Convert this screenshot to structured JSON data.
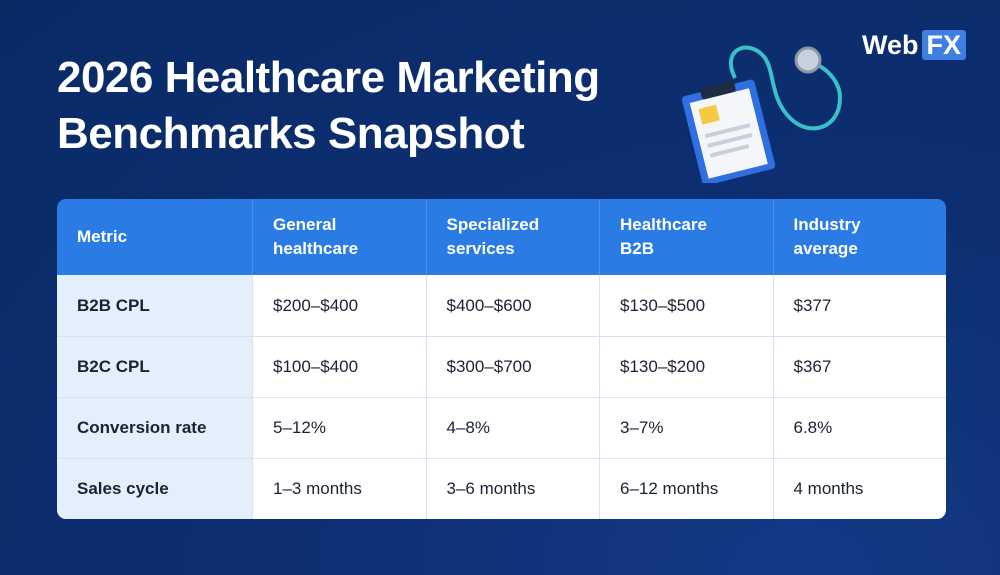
{
  "header": {
    "title": "2026 Healthcare Marketing Benchmarks Snapshot",
    "logo_word": "Web",
    "logo_box": "FX"
  },
  "table": {
    "columns": [
      "Metric",
      "General healthcare",
      "Specialized services",
      "Healthcare B2B",
      "Industry average"
    ],
    "rows": [
      [
        "B2B CPL",
        "$200–$400",
        "$400–$600",
        "$130–$500",
        "$377"
      ],
      [
        "B2C CPL",
        "$100–$400",
        "$300–$700",
        "$130–$200",
        "$367"
      ],
      [
        "Conversion rate",
        "5–12%",
        "4–8%",
        "3–7%",
        "6.8%"
      ],
      [
        "Sales cycle",
        "1–3 months",
        "3–6 months",
        "6–12 months",
        "4 months"
      ]
    ]
  }
}
